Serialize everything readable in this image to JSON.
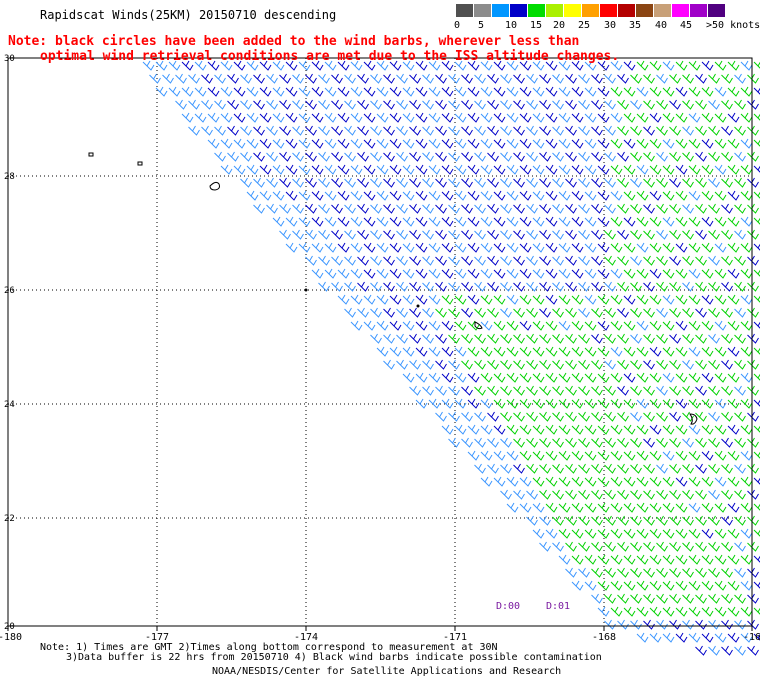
{
  "title": "Rapidscat Winds(25KM) 20150710 descending",
  "note": {
    "line1": "Note: black circles have been added to the wind barbs, wherever less than",
    "line2": "optimal wind retrieval conditions are met due to the ISS altitude changes."
  },
  "color_scale": {
    "swatches": [
      "#505050",
      "#8c8c8c",
      "#0096ff",
      "#0000c8",
      "#00dc00",
      "#aaf000",
      "#ffff00",
      "#ffa000",
      "#ff0000",
      "#b40000",
      "#8b4513",
      "#c8a078",
      "#ff00ff",
      "#a000c8",
      "#500080"
    ],
    "labels": [
      "0",
      "5",
      "10",
      "15",
      "20",
      "25",
      "30",
      "35",
      "40",
      "45",
      ">50 knots"
    ]
  },
  "map": {
    "lon_ticks": [
      "-180",
      "-177",
      "-174",
      "-171",
      "-168",
      "-16"
    ],
    "lat_ticks": [
      "30",
      "28",
      "26",
      "24",
      "22",
      "20"
    ],
    "time_labels": [
      "D:00",
      "D:01"
    ]
  },
  "footer": {
    "line1": "Note: 1) Times are GMT 2)Times along bottom correspond to measurement at 30N",
    "line2": "3)Data buffer is 22 hrs from 20150710 4) Black wind barbs indicate possible contamination",
    "line3": "NOAA/NESDIS/Center for Satellite Applications and Research"
  },
  "colors": {
    "barb_light": "#3c96ff",
    "barb_dark": "#0000c8",
    "barb_green": "#00d200",
    "note_red": "#ff0000",
    "time_label": "#7a1aa0"
  }
}
